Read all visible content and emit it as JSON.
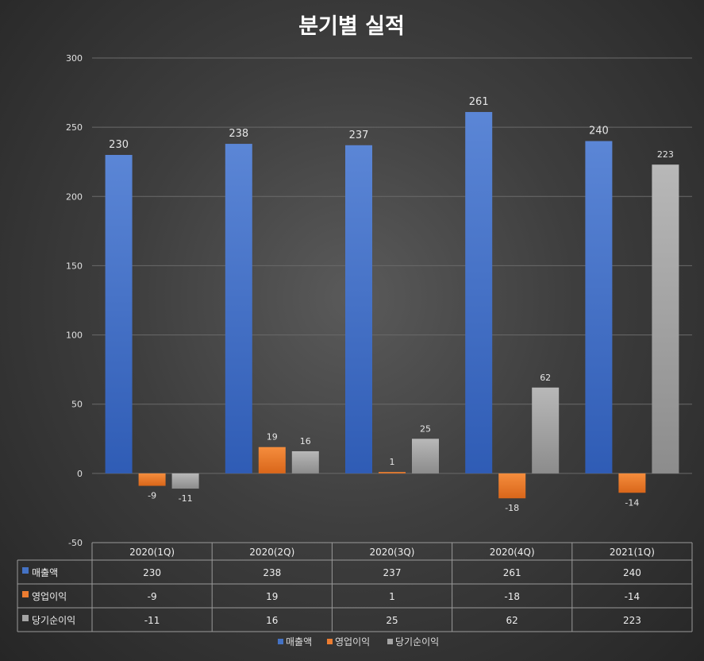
{
  "chart_data": {
    "type": "bar",
    "title": "분기별 실적",
    "categories": [
      "2020(1Q)",
      "2020(2Q)",
      "2020(3Q)",
      "2020(4Q)",
      "2021(1Q)"
    ],
    "series": [
      {
        "name": "매출액",
        "color": "#4472c4",
        "values": [
          230,
          238,
          237,
          261,
          240
        ]
      },
      {
        "name": "영업이익",
        "color": "#ed7d31",
        "values": [
          -9,
          19,
          1,
          -18,
          -14
        ]
      },
      {
        "name": "당기순이익",
        "color": "#a5a5a5",
        "values": [
          -11,
          16,
          25,
          62,
          223
        ]
      }
    ],
    "ylim": [
      -50,
      300
    ],
    "yticks": [
      -50,
      0,
      50,
      100,
      150,
      200,
      250,
      300
    ],
    "grid": true,
    "legend": "bottom",
    "data_table": true
  }
}
